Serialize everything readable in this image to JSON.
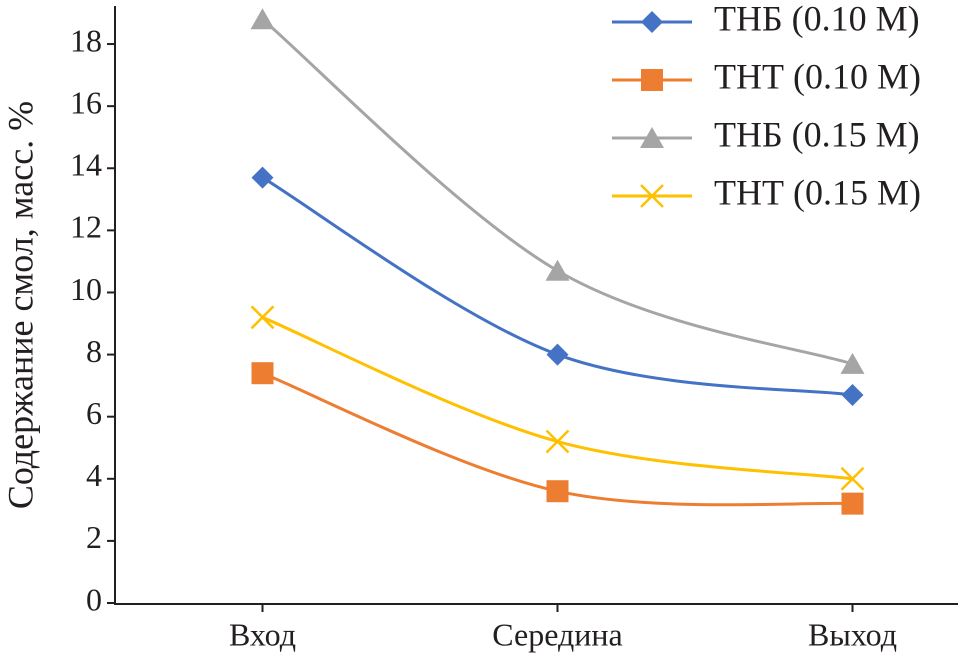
{
  "chart_data": {
    "type": "line",
    "y_label": "Содержание смол, масс. %",
    "categories": [
      "Вход",
      "Середина",
      "Выход"
    ],
    "series": [
      {
        "name": "ТНБ (0.10 М)",
        "color": "#4472c4",
        "marker": "diamond",
        "values": [
          13.7,
          8.0,
          6.7
        ]
      },
      {
        "name": "ТНТ (0.10 М)",
        "color": "#ed7d31",
        "marker": "square",
        "values": [
          7.4,
          3.6,
          3.2
        ]
      },
      {
        "name": "ТНБ (0.15 М)",
        "color": "#a5a5a5",
        "marker": "triangle",
        "values": [
          18.8,
          10.7,
          7.7
        ]
      },
      {
        "name": "ТНТ (0.15 М)",
        "color": "#ffc000",
        "marker": "x",
        "values": [
          9.2,
          5.2,
          4.0
        ]
      }
    ],
    "ylim": [
      0,
      19
    ],
    "yticks": [
      0,
      2,
      4,
      6,
      8,
      10,
      12,
      14,
      16,
      18
    ],
    "smooth": true,
    "legend": "upper right"
  }
}
